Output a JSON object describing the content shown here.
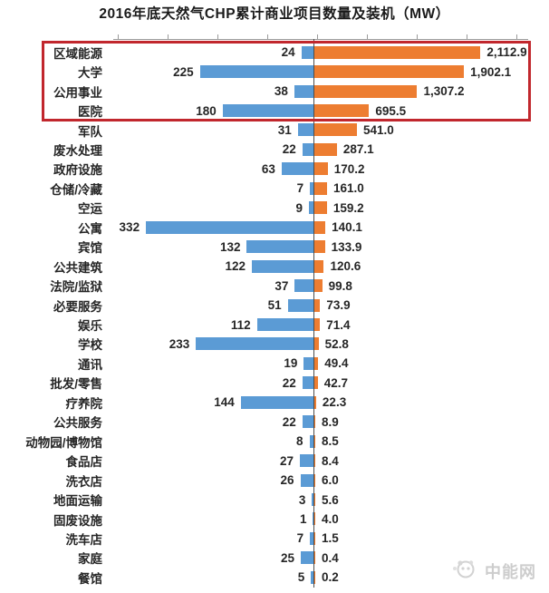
{
  "title": "2016年底天然气CHP累计商业项目数量及装机（MW）",
  "watermark": {
    "text": "中能网",
    "logo_icon": "panda-logo-icon"
  },
  "chart_data": {
    "type": "bar",
    "subtype": "diverging-horizontal-tornado",
    "title": "2016年底天然气CHP累计商业项目数量及装机（MW）",
    "xlabel": "",
    "ylabel": "",
    "grid": false,
    "legend": "none",
    "categories": [
      "区域能源",
      "大学",
      "公用事业",
      "医院",
      "军队",
      "废水处理",
      "政府设施",
      "仓储/冷藏",
      "空运",
      "公寓",
      "宾馆",
      "公共建筑",
      "法院/监狱",
      "必要服务",
      "娱乐",
      "学校",
      "通讯",
      "批发/零售",
      "疗养院",
      "公共服务",
      "动物园/博物馆",
      "食品店",
      "洗衣店",
      "地面运输",
      "固废设施",
      "洗车店",
      "家庭",
      "餐馆"
    ],
    "series": [
      {
        "name": "商业项目数量",
        "side": "left",
        "color": "#5B9BD5",
        "values": [
          24,
          225,
          38,
          180,
          31,
          22,
          63,
          7,
          9,
          332,
          132,
          122,
          37,
          51,
          112,
          233,
          19,
          22,
          144,
          22,
          8,
          27,
          26,
          3,
          1,
          7,
          25,
          5
        ]
      },
      {
        "name": "装机（MW）",
        "side": "right",
        "color": "#ED7D31",
        "values": [
          2112.9,
          1902.1,
          1307.2,
          695.5,
          541.0,
          287.1,
          170.2,
          161.0,
          159.2,
          140.1,
          133.9,
          120.6,
          99.8,
          73.9,
          71.4,
          52.8,
          49.4,
          42.7,
          22.3,
          8.9,
          8.5,
          8.4,
          6.0,
          5.6,
          4.0,
          1.5,
          0.4,
          0.2
        ],
        "display": [
          "2,112.9",
          "1,902.1",
          "1,307.2",
          "695.5",
          "541.0",
          "287.1",
          "170.2",
          "161.0",
          "159.2",
          "140.1",
          "133.9",
          "120.6",
          "99.8",
          "73.9",
          "71.4",
          "52.8",
          "49.4",
          "42.7",
          "22.3",
          "8.9",
          "8.5",
          "8.4",
          "6.0",
          "5.6",
          "4.0",
          "1.5",
          "0.4",
          "0.2"
        ]
      }
    ],
    "annotations": {
      "highlight_box": {
        "shape": "red-rectangle",
        "color": "#C1272D",
        "highlighted_categories": [
          "区域能源",
          "大学",
          "公用事业",
          "医院"
        ]
      }
    },
    "axis_colors": {
      "line": "#9a9a9a",
      "center_line": "#4d4d4d"
    }
  }
}
